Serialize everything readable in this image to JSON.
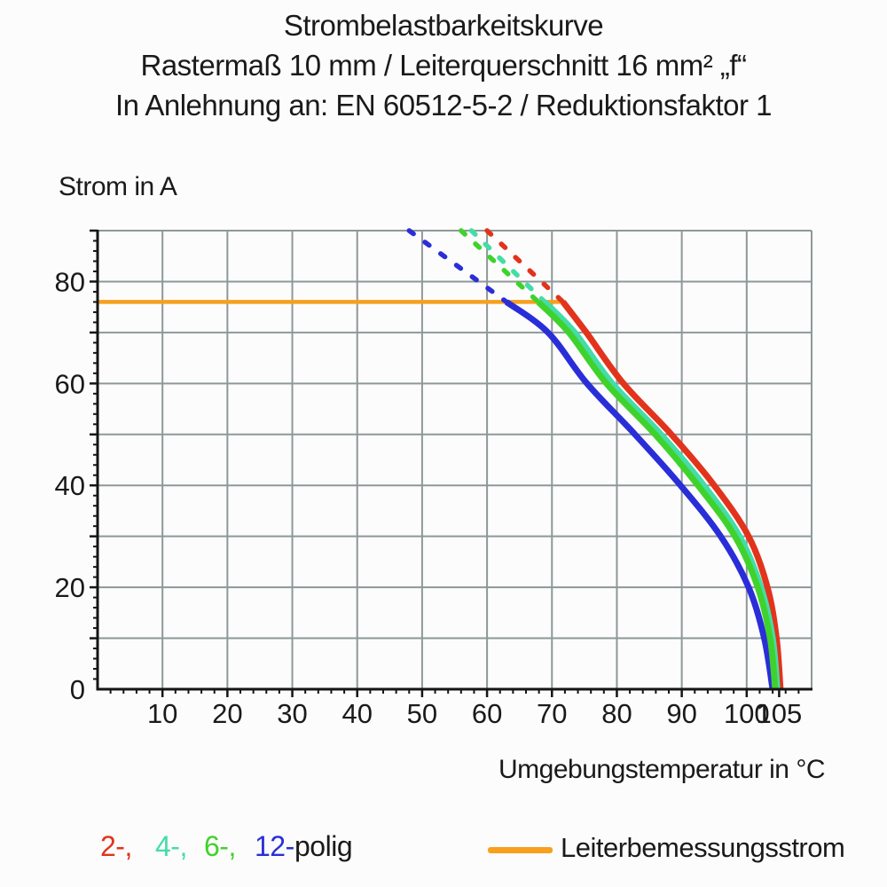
{
  "title": {
    "line1": "Strombelastbarkeitskurve",
    "line2": "Rastermaß 10 mm / Leiterquerschnitt 16 mm² „f“",
    "line3": "In Anlehnung an: EN 60512-5-2 / Reduktionsfaktor 1"
  },
  "chart_data": {
    "type": "line",
    "title": "Strombelastbarkeitskurve",
    "ylabel": "Strom in A",
    "xlabel": "Umgebungstemperatur in °C",
    "xlim": [
      0,
      110
    ],
    "ylim": [
      0,
      90
    ],
    "grid": true,
    "grid_step": 10,
    "x_minor_step": 2,
    "y_minor_step": 2,
    "x_tick_labels": [
      10,
      20,
      30,
      40,
      50,
      60,
      70,
      80,
      90,
      100,
      105
    ],
    "y_tick_labels": [
      0,
      20,
      40,
      60,
      80
    ],
    "colors": {
      "grid": "#8e9898",
      "axis": "#151515",
      "blue_12polig": "#2a2ed8",
      "green_6polig": "#40d22c",
      "teal_4polig": "#44dca8",
      "red_2polig": "#e2331c",
      "orange_reference": "#f6a01e"
    },
    "reference_line": {
      "name": "Leiterbemessungsstrom",
      "current_a": 76,
      "t_start": 0,
      "t_end": 72
    },
    "series": [
      {
        "name": "12-polig",
        "color": "#2a2ed8",
        "dashed_points": [
          [
            48,
            90
          ],
          [
            63,
            76
          ]
        ],
        "solid_points": [
          [
            63,
            76
          ],
          [
            69.4,
            70
          ],
          [
            75.4,
            60
          ],
          [
            82.8,
            50
          ],
          [
            89.8,
            40
          ],
          [
            96,
            30
          ],
          [
            100.3,
            20
          ],
          [
            102.7,
            10
          ],
          [
            104,
            0
          ]
        ]
      },
      {
        "name": "6-polig",
        "color": "#40d22c",
        "dashed_points": [
          [
            56,
            90
          ],
          [
            67.9,
            76
          ]
        ],
        "solid_points": [
          [
            67.9,
            76
          ],
          [
            72.6,
            70
          ],
          [
            78.4,
            60
          ],
          [
            85.9,
            50
          ],
          [
            92.5,
            40
          ],
          [
            98.2,
            30
          ],
          [
            101.7,
            20
          ],
          [
            103.6,
            10
          ],
          [
            104.4,
            0
          ]
        ]
      },
      {
        "name": "4-polig",
        "color": "#44dca8",
        "dashed_points": [
          [
            57.6,
            90
          ],
          [
            68.9,
            76
          ]
        ],
        "solid_points": [
          [
            68.9,
            76
          ],
          [
            73.5,
            70
          ],
          [
            79.3,
            60
          ],
          [
            86.8,
            50
          ],
          [
            93.4,
            40
          ],
          [
            98.9,
            30
          ],
          [
            102.2,
            20
          ],
          [
            104,
            10
          ],
          [
            104.7,
            0
          ]
        ]
      },
      {
        "name": "2-polig",
        "color": "#e2331c",
        "dashed_points": [
          [
            60,
            90
          ],
          [
            71.7,
            76
          ]
        ],
        "solid_points": [
          [
            71.7,
            76
          ],
          [
            75.3,
            70
          ],
          [
            81,
            60
          ],
          [
            88.4,
            50
          ],
          [
            95,
            40
          ],
          [
            100.3,
            30
          ],
          [
            103.2,
            20
          ],
          [
            104.6,
            10
          ],
          [
            105.2,
            0
          ]
        ]
      }
    ]
  },
  "legend": {
    "poles": [
      {
        "label": "2-,",
        "color": "#e2331c"
      },
      {
        "label": "4-,",
        "color": "#44dca8"
      },
      {
        "label": "6-,",
        "color": "#40d22c"
      },
      {
        "label": "12-",
        "color": "#2a2ed8"
      }
    ],
    "poles_suffix": "polig",
    "reference_label": "Leiterbemessungsstrom",
    "reference_color": "#f6a01e"
  }
}
